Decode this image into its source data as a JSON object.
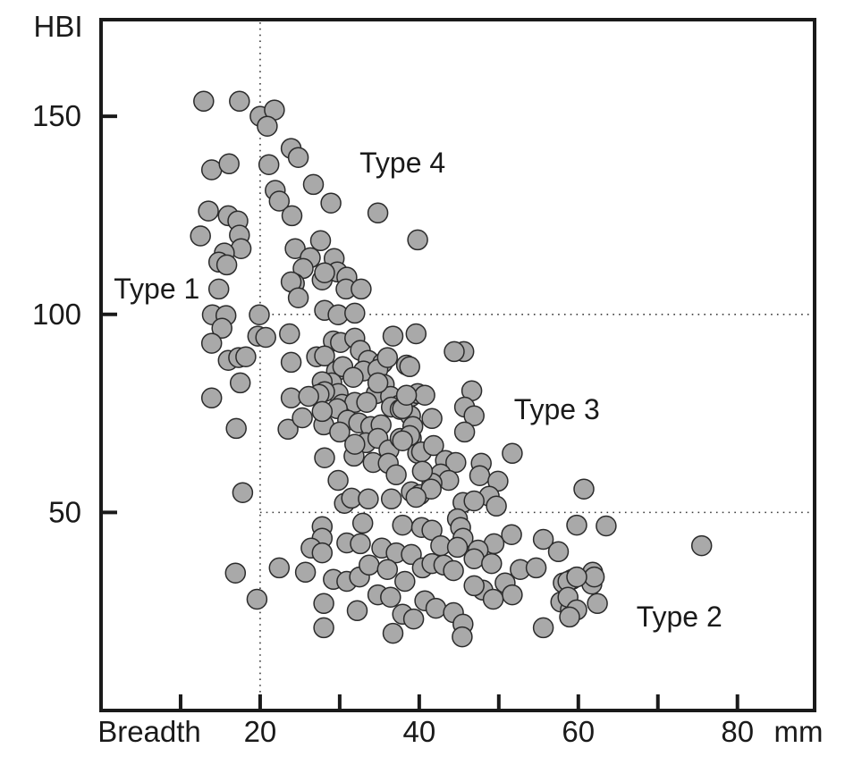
{
  "chart_data": {
    "type": "scatter",
    "title": "",
    "ylabel": "HBI",
    "xlabel": "Breadth",
    "x_unit": "mm",
    "xlim": [
      0,
      89.7
    ],
    "ylim": [
      0,
      174.4
    ],
    "x_ticks": [
      10,
      20,
      30,
      40,
      50,
      60,
      70,
      80
    ],
    "x_ticks_labeled": [
      20,
      40,
      60,
      80
    ],
    "y_ticks": [
      50,
      100,
      150
    ],
    "legend": "none",
    "grid": "dotted reference lines only",
    "reference_lines": [
      {
        "axis": "x",
        "at": 20,
        "from": 0,
        "to": 174.4,
        "style": "dotted"
      },
      {
        "axis": "y",
        "at": 100,
        "from": 20,
        "to": 89.7,
        "style": "dotted"
      },
      {
        "axis": "y",
        "at": 50,
        "from": 20,
        "to": 89.7,
        "style": "dotted"
      }
    ],
    "annotations": [
      {
        "label": "Type 1",
        "x": 7.0,
        "y": 106.5
      },
      {
        "label": "Type 4",
        "x": 37.9,
        "y": 138.3
      },
      {
        "label": "Type 3",
        "x": 57.3,
        "y": 76.0
      },
      {
        "label": "Type 2",
        "x": 72.7,
        "y": 23.7
      }
    ],
    "marker": {
      "shape": "circle",
      "radius_px": 11,
      "fill": "#a9a9a9",
      "stroke": "#2b2b2b"
    },
    "frame_color": "#1a1a1a",
    "points": [
      [
        12.9,
        153.8
      ],
      [
        17.4,
        153.8
      ],
      [
        20.0,
        150.0
      ],
      [
        21.8,
        151.6
      ],
      [
        20.9,
        147.5
      ],
      [
        23.9,
        141.9
      ],
      [
        24.8,
        139.6
      ],
      [
        13.9,
        136.5
      ],
      [
        16.1,
        138.0
      ],
      [
        21.1,
        137.8
      ],
      [
        26.7,
        132.8
      ],
      [
        21.9,
        131.3
      ],
      [
        22.4,
        128.6
      ],
      [
        28.9,
        128.1
      ],
      [
        34.8,
        125.6
      ],
      [
        13.5,
        126.1
      ],
      [
        16.0,
        124.9
      ],
      [
        17.2,
        123.6
      ],
      [
        24.0,
        124.9
      ],
      [
        12.5,
        119.8
      ],
      [
        17.4,
        120.0
      ],
      [
        39.8,
        118.8
      ],
      [
        17.6,
        116.6
      ],
      [
        24.4,
        116.6
      ],
      [
        27.6,
        118.6
      ],
      [
        26.3,
        114.3
      ],
      [
        15.5,
        115.5
      ],
      [
        14.8,
        113.2
      ],
      [
        15.8,
        112.5
      ],
      [
        29.3,
        114.1
      ],
      [
        29.7,
        110.7
      ],
      [
        30.9,
        109.4
      ],
      [
        25.4,
        111.6
      ],
      [
        27.8,
        108.7
      ],
      [
        24.3,
        107.8
      ],
      [
        14.8,
        106.4
      ],
      [
        23.9,
        108.2
      ],
      [
        24.8,
        104.2
      ],
      [
        28.1,
        110.5
      ],
      [
        30.8,
        106.4
      ],
      [
        32.7,
        106.4
      ],
      [
        28.1,
        101.0
      ],
      [
        29.8,
        99.9
      ],
      [
        31.9,
        100.3
      ],
      [
        14.0,
        99.9
      ],
      [
        15.7,
        99.7
      ],
      [
        15.2,
        96.5
      ],
      [
        19.9,
        99.9
      ],
      [
        19.7,
        94.5
      ],
      [
        20.7,
        94.2
      ],
      [
        23.7,
        95.1
      ],
      [
        13.9,
        92.7
      ],
      [
        29.2,
        93.3
      ],
      [
        30.1,
        92.9
      ],
      [
        31.9,
        94.0
      ],
      [
        36.7,
        94.5
      ],
      [
        39.6,
        95.1
      ],
      [
        32.6,
        90.9
      ],
      [
        33.6,
        88.4
      ],
      [
        35.4,
        87.7
      ],
      [
        38.4,
        87.2
      ],
      [
        16.0,
        88.4
      ],
      [
        17.3,
        89.1
      ],
      [
        18.2,
        89.3
      ],
      [
        23.9,
        87.9
      ],
      [
        27.1,
        89.3
      ],
      [
        28.1,
        89.5
      ],
      [
        29.6,
        85.7
      ],
      [
        30.4,
        86.8
      ],
      [
        33.0,
        85.7
      ],
      [
        34.8,
        86.1
      ],
      [
        35.6,
        82.3
      ],
      [
        34.6,
        80.0
      ],
      [
        31.7,
        84.1
      ],
      [
        29.0,
        82.7
      ],
      [
        27.8,
        83.0
      ],
      [
        29.8,
        80.0
      ],
      [
        28.1,
        80.5
      ],
      [
        27.4,
        79.8
      ],
      [
        30.3,
        77.3
      ],
      [
        31.9,
        77.8
      ],
      [
        33.4,
        77.8
      ],
      [
        36.4,
        79.3
      ],
      [
        37.5,
        77.1
      ],
      [
        39.0,
        79.3
      ],
      [
        39.8,
        80.0
      ],
      [
        17.5,
        82.7
      ],
      [
        13.9,
        78.9
      ],
      [
        23.9,
        78.9
      ],
      [
        23.5,
        71.0
      ],
      [
        28.0,
        72.1
      ],
      [
        29.7,
        76.2
      ],
      [
        31.0,
        73.3
      ],
      [
        32.4,
        72.6
      ],
      [
        33.9,
        71.7
      ],
      [
        35.2,
        72.1
      ],
      [
        36.5,
        76.6
      ],
      [
        37.6,
        76.0
      ],
      [
        38.9,
        74.4
      ],
      [
        17.0,
        71.2
      ],
      [
        33.3,
        67.6
      ],
      [
        34.8,
        68.7
      ],
      [
        36.2,
        65.8
      ],
      [
        31.8,
        64.2
      ],
      [
        34.2,
        62.6
      ],
      [
        36.1,
        62.4
      ],
      [
        37.6,
        68.7
      ],
      [
        39.0,
        68.7
      ],
      [
        39.8,
        64.9
      ],
      [
        37.1,
        59.5
      ],
      [
        40.7,
        79.6
      ],
      [
        45.6,
        90.6
      ],
      [
        44.4,
        90.6
      ],
      [
        46.6,
        80.7
      ],
      [
        45.7,
        76.6
      ],
      [
        46.9,
        74.4
      ],
      [
        45.7,
        70.3
      ],
      [
        41.6,
        73.7
      ],
      [
        37.9,
        76.2
      ],
      [
        39.2,
        71.7
      ],
      [
        38.8,
        69.4
      ],
      [
        37.9,
        68.1
      ],
      [
        40.3,
        65.3
      ],
      [
        41.8,
        66.9
      ],
      [
        43.3,
        63.1
      ],
      [
        44.6,
        62.6
      ],
      [
        47.8,
        62.4
      ],
      [
        47.6,
        59.3
      ],
      [
        51.7,
        64.9
      ],
      [
        49.9,
        57.9
      ],
      [
        42.7,
        59.7
      ],
      [
        43.7,
        58.1
      ],
      [
        41.6,
        57.4
      ],
      [
        39.0,
        55.2
      ],
      [
        40.1,
        54.5
      ],
      [
        41.5,
        55.9
      ],
      [
        48.8,
        54.1
      ],
      [
        49.7,
        51.6
      ],
      [
        60.7,
        55.9
      ],
      [
        36.0,
        89.1
      ],
      [
        38.8,
        86.8
      ],
      [
        17.8,
        55.0
      ],
      [
        30.6,
        52.3
      ],
      [
        31.5,
        53.6
      ],
      [
        33.6,
        53.4
      ],
      [
        36.5,
        53.4
      ],
      [
        39.6,
        53.8
      ],
      [
        45.5,
        52.5
      ],
      [
        46.9,
        52.9
      ],
      [
        32.9,
        47.3
      ],
      [
        27.8,
        46.4
      ],
      [
        27.8,
        43.5
      ],
      [
        37.9,
        46.8
      ],
      [
        40.3,
        46.2
      ],
      [
        41.6,
        45.5
      ],
      [
        44.8,
        48.4
      ],
      [
        45.2,
        46.2
      ],
      [
        45.5,
        43.5
      ],
      [
        42.7,
        41.6
      ],
      [
        44.8,
        41.2
      ],
      [
        26.4,
        41.0
      ],
      [
        27.8,
        39.8
      ],
      [
        30.9,
        42.3
      ],
      [
        32.6,
        42.1
      ],
      [
        35.3,
        41.0
      ],
      [
        37.1,
        39.8
      ],
      [
        39.0,
        39.4
      ],
      [
        22.4,
        36.0
      ],
      [
        16.9,
        34.7
      ],
      [
        25.7,
        34.9
      ],
      [
        29.2,
        33.1
      ],
      [
        30.9,
        32.6
      ],
      [
        32.5,
        33.7
      ],
      [
        33.7,
        36.7
      ],
      [
        36.0,
        35.6
      ],
      [
        38.2,
        32.6
      ],
      [
        40.4,
        36.0
      ],
      [
        41.6,
        37.1
      ],
      [
        43.1,
        36.7
      ],
      [
        44.3,
        35.3
      ],
      [
        19.6,
        28.1
      ],
      [
        28.0,
        27.0
      ],
      [
        32.2,
        25.2
      ],
      [
        34.8,
        29.2
      ],
      [
        36.4,
        28.6
      ],
      [
        37.9,
        24.3
      ],
      [
        39.3,
        23.1
      ],
      [
        40.7,
        27.7
      ],
      [
        42.1,
        25.8
      ],
      [
        44.3,
        24.7
      ],
      [
        28.0,
        20.9
      ],
      [
        36.7,
        19.5
      ],
      [
        45.5,
        21.8
      ],
      [
        45.4,
        18.6
      ],
      [
        51.6,
        44.4
      ],
      [
        55.6,
        43.2
      ],
      [
        57.5,
        40.1
      ],
      [
        49.4,
        42.1
      ],
      [
        47.4,
        40.5
      ],
      [
        46.9,
        38.3
      ],
      [
        49.1,
        37.1
      ],
      [
        52.7,
        35.6
      ],
      [
        54.7,
        36.0
      ],
      [
        50.8,
        32.2
      ],
      [
        51.7,
        29.2
      ],
      [
        48.0,
        30.4
      ],
      [
        49.3,
        28.1
      ],
      [
        46.9,
        31.5
      ],
      [
        58.1,
        32.2
      ],
      [
        59.2,
        33.1
      ],
      [
        61.8,
        34.9
      ],
      [
        61.7,
        31.9
      ],
      [
        57.8,
        27.4
      ],
      [
        59.0,
        25.4
      ],
      [
        62.4,
        27.0
      ],
      [
        55.6,
        20.9
      ],
      [
        75.5,
        41.6
      ],
      [
        62.0,
        33.7
      ],
      [
        58.7,
        32.6
      ],
      [
        59.8,
        33.7
      ],
      [
        58.7,
        28.6
      ],
      [
        59.8,
        25.4
      ],
      [
        58.9,
        23.6
      ],
      [
        59.8,
        46.8
      ],
      [
        63.5,
        46.6
      ],
      [
        34.8,
        82.7
      ],
      [
        38.4,
        79.6
      ],
      [
        26.1,
        79.3
      ],
      [
        27.8,
        75.5
      ],
      [
        25.3,
        73.9
      ],
      [
        30.0,
        70.3
      ],
      [
        31.9,
        67.2
      ],
      [
        28.1,
        63.8
      ],
      [
        40.4,
        60.4
      ],
      [
        29.8,
        58.1
      ]
    ]
  }
}
